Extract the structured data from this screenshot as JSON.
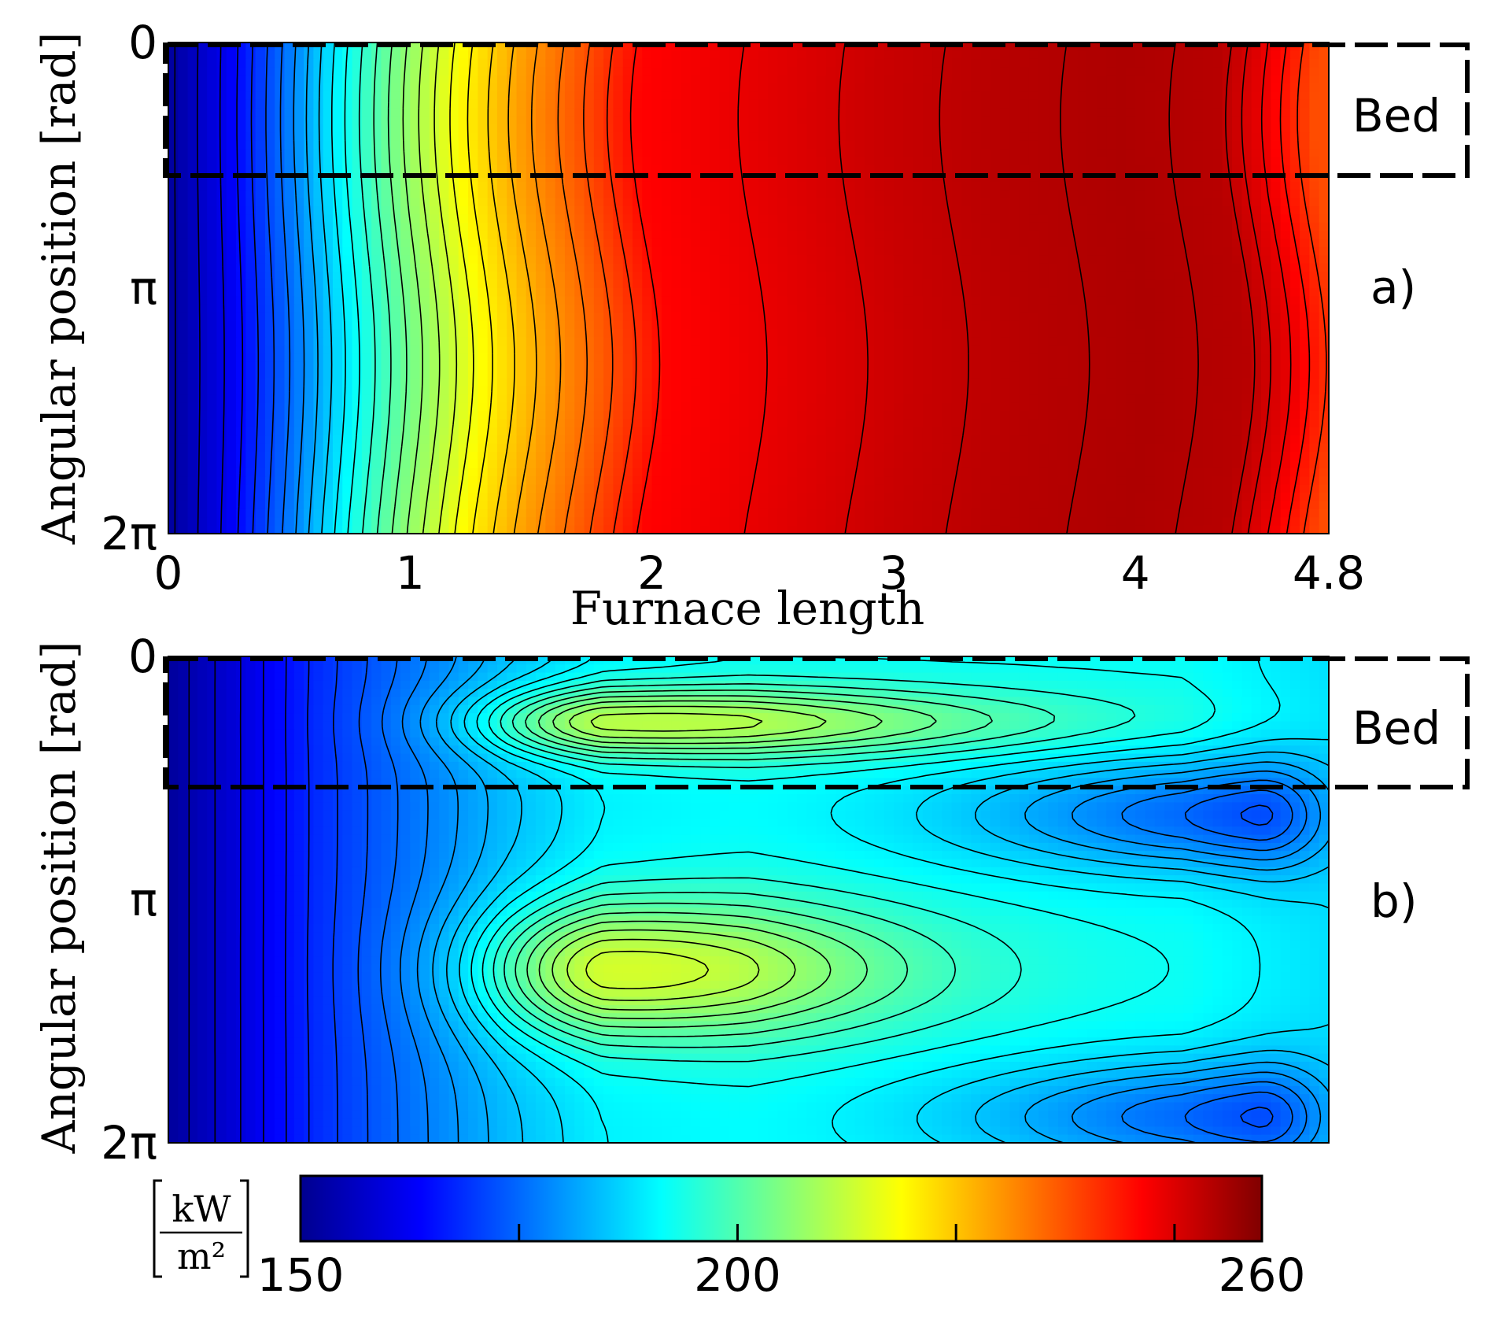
{
  "chart_data": [
    {
      "type": "heatmap",
      "panel_label": "a)",
      "xlabel": "Furnace length",
      "ylabel": "Angular position [rad]",
      "xlim": [
        0,
        4.8
      ],
      "ylim": [
        0,
        6.2832
      ],
      "x_ticks": [
        "0",
        "1",
        "2",
        "3",
        "4",
        "4.8"
      ],
      "x_tick_values": [
        0,
        1,
        2,
        3,
        4,
        4.8
      ],
      "y_ticks": [
        "0",
        "π",
        "2π"
      ],
      "y_tick_values": [
        0,
        3.1416,
        6.2832
      ],
      "bed_region": {
        "label": "Bed",
        "y_range": [
          0,
          1.65
        ]
      },
      "x": [
        0,
        0.25,
        0.5,
        0.75,
        1.0,
        1.25,
        1.5,
        1.75,
        2.0,
        2.5,
        3.0,
        3.5,
        4.0,
        4.4,
        4.6,
        4.8
      ],
      "profile": [
        153,
        162,
        176,
        192,
        206,
        219,
        229,
        237,
        246,
        249,
        252,
        254,
        255,
        254,
        248,
        238
      ],
      "grid": false
    },
    {
      "type": "heatmap",
      "panel_label": "b)",
      "ylabel": "Angular position [rad]",
      "xlim": [
        0,
        4.8
      ],
      "ylim": [
        0,
        6.2832
      ],
      "y_ticks": [
        "0",
        "π",
        "2π"
      ],
      "y_tick_values": [
        0,
        3.1416,
        6.2832
      ],
      "bed_region": {
        "label": "Bed",
        "y_range": [
          0,
          1.65
        ]
      },
      "baseline_x": [
        0,
        0.3,
        0.6,
        1.0,
        1.4,
        1.8,
        2.4,
        3.0,
        3.6,
        4.2,
        4.8
      ],
      "baseline_values": [
        153,
        160,
        168,
        176,
        184,
        190,
        192,
        192,
        192,
        192,
        188
      ],
      "features": [
        {
          "kind": "peak",
          "x": 1.8,
          "y": 0.85,
          "value": 211
        },
        {
          "kind": "peak",
          "x": 1.8,
          "y": 4.05,
          "value": 214
        },
        {
          "kind": "trough",
          "x": 4.5,
          "y": 2.05,
          "value": 172
        },
        {
          "kind": "trough",
          "x": 4.5,
          "y": 5.95,
          "value": 172
        }
      ],
      "grid": false
    }
  ],
  "colorbar": {
    "min": 150,
    "max": 260,
    "tick_labels": [
      "150",
      "200",
      "260"
    ],
    "tick_values": [
      150,
      200,
      260
    ],
    "minor_ticks": [
      175,
      200,
      225,
      250
    ],
    "unit_numerator": "kW",
    "unit_denominator": "m²",
    "colormap": "jet"
  }
}
